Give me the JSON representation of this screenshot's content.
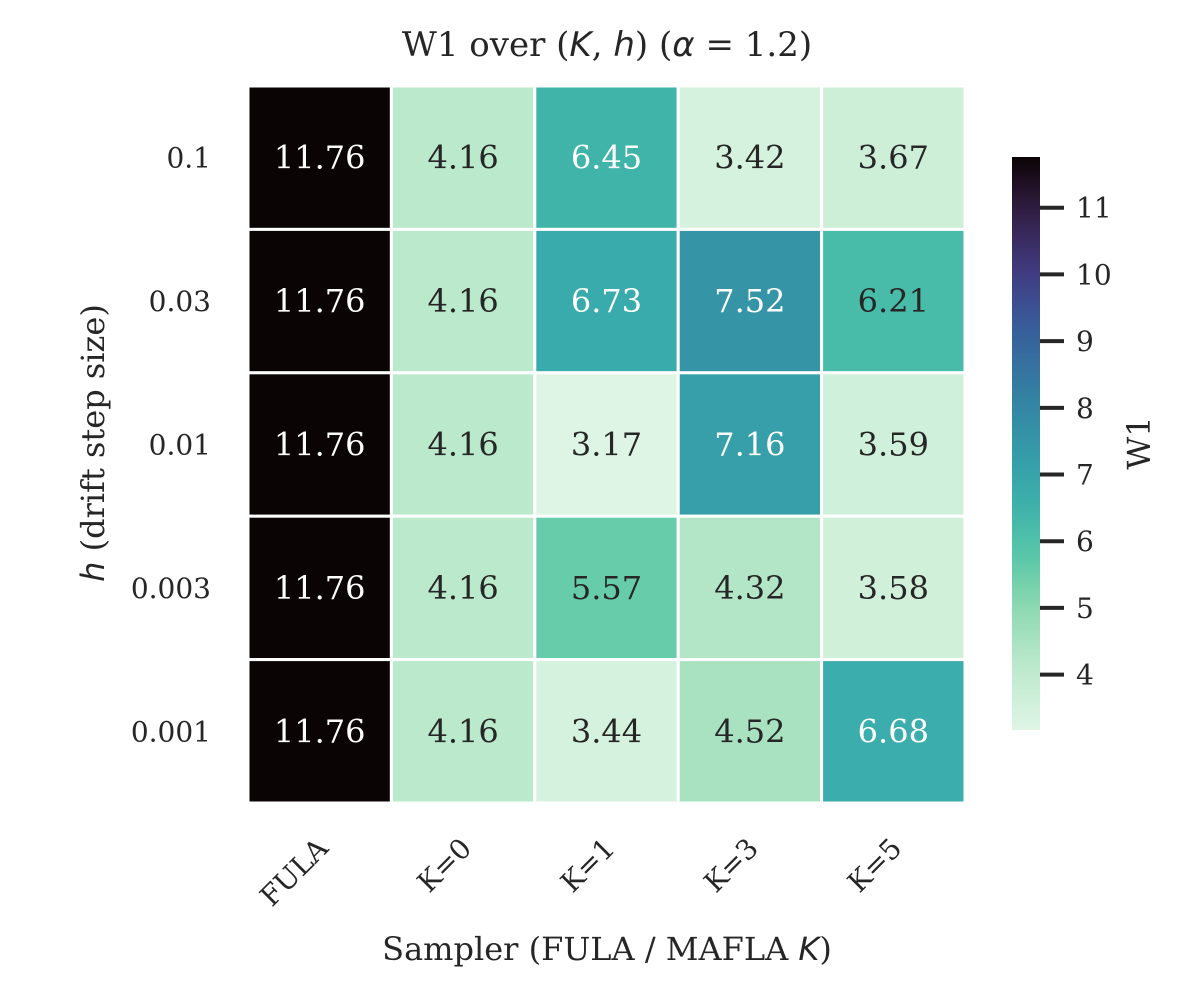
{
  "chart_data": {
    "type": "heatmap",
    "title_parts": [
      "W1 over (",
      "K",
      ", ",
      "h",
      ") (",
      "α",
      " = 1.2)"
    ],
    "xlabel_parts": [
      "Sampler (FULA / MAFLA ",
      "K",
      ")"
    ],
    "ylabel_parts": [
      "h",
      " (drift step size)"
    ],
    "x_categories": [
      "FULA",
      "K=0",
      "K=1",
      "K=3",
      "K=5"
    ],
    "y_categories": [
      "0.1",
      "0.03",
      "0.01",
      "0.003",
      "0.001"
    ],
    "values": [
      [
        11.76,
        4.16,
        6.45,
        3.42,
        3.67
      ],
      [
        11.76,
        4.16,
        6.73,
        7.52,
        6.21
      ],
      [
        11.76,
        4.16,
        3.17,
        7.16,
        3.59
      ],
      [
        11.76,
        4.16,
        5.57,
        4.32,
        3.58
      ],
      [
        11.76,
        4.16,
        3.44,
        4.52,
        6.68
      ]
    ],
    "colorbar": {
      "label": "W1",
      "range": [
        3.17,
        11.76
      ],
      "ticks": [
        "4",
        "5",
        "6",
        "7",
        "8",
        "9",
        "10",
        "11"
      ],
      "colormap": "mako_r"
    },
    "annotate": true,
    "grid_color": "#ffffff"
  }
}
